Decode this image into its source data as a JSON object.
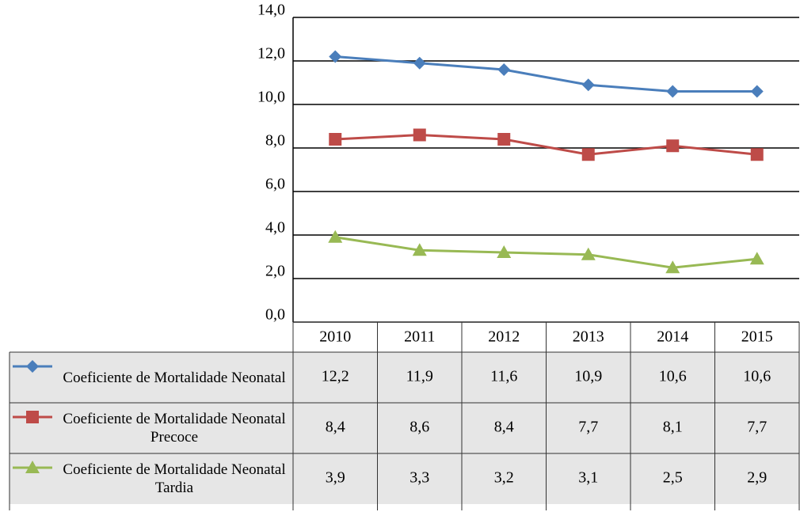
{
  "chart_data": {
    "type": "line",
    "categories": [
      "2010",
      "2011",
      "2012",
      "2013",
      "2014",
      "2015"
    ],
    "ylim": [
      0,
      14
    ],
    "yticks": [
      {
        "value": 0,
        "label": "0,0"
      },
      {
        "value": 2,
        "label": "2,0"
      },
      {
        "value": 4,
        "label": "4,0"
      },
      {
        "value": 6,
        "label": "6,0"
      },
      {
        "value": 8,
        "label": "8,0"
      },
      {
        "value": 10,
        "label": "10,0"
      },
      {
        "value": 12,
        "label": "12,0"
      },
      {
        "value": 14,
        "label": "14,0"
      }
    ],
    "grid": true,
    "series": [
      {
        "name": "Coeficiente de Mortalidade Neonatal",
        "color": "#4a7ebb",
        "marker": "diamond",
        "values": [
          12.2,
          11.9,
          11.6,
          10.9,
          10.6,
          10.6
        ],
        "value_labels": [
          "12,2",
          "11,9",
          "11,6",
          "10,9",
          "10,6",
          "10,6"
        ]
      },
      {
        "name": "Coeficiente de Mortalidade Neonatal Precoce",
        "color": "#be4b48",
        "marker": "square",
        "values": [
          8.4,
          8.6,
          8.4,
          7.7,
          8.1,
          7.7
        ],
        "value_labels": [
          "8,4",
          "8,6",
          "8,4",
          "7,7",
          "8,1",
          "7,7"
        ]
      },
      {
        "name": "Coeficiente de Mortalidade Neonatal Tardia",
        "color": "#98b954",
        "marker": "triangle",
        "values": [
          3.9,
          3.3,
          3.2,
          3.1,
          2.5,
          2.9
        ],
        "value_labels": [
          "3,9",
          "3,3",
          "3,2",
          "3,1",
          "2,5",
          "2,9"
        ]
      }
    ]
  }
}
